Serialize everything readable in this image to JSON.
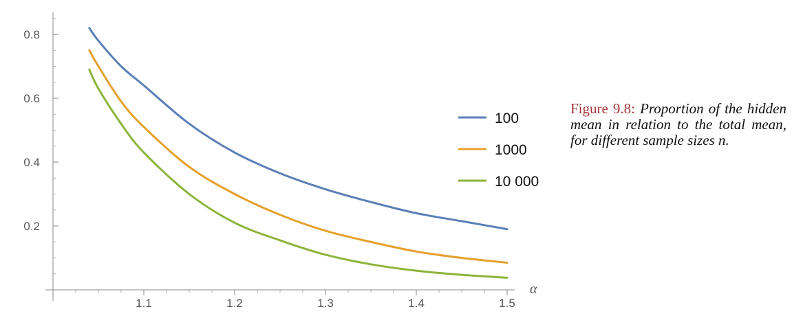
{
  "chart_data": {
    "type": "line",
    "xlabel": "α",
    "ylabel": "",
    "xlim": [
      1.0,
      1.5
    ],
    "ylim": [
      0.0,
      0.85
    ],
    "x_ticks": [
      1.1,
      1.2,
      1.3,
      1.4,
      1.5
    ],
    "y_ticks": [
      0.2,
      0.4,
      0.6,
      0.8
    ],
    "x_tick_labels": [
      "1.1",
      "1.2",
      "1.3",
      "1.4",
      "1.5"
    ],
    "y_tick_labels": [
      "0.2",
      "0.4",
      "0.6",
      "0.8"
    ],
    "x": [
      1.04,
      1.05,
      1.075,
      1.1,
      1.15,
      1.2,
      1.25,
      1.3,
      1.35,
      1.4,
      1.45,
      1.5
    ],
    "series": [
      {
        "name": "100",
        "color": "#5b7fb8",
        "values": [
          0.82,
          0.78,
          0.7,
          0.64,
          0.52,
          0.43,
          0.365,
          0.315,
          0.275,
          0.24,
          0.215,
          0.19
        ]
      },
      {
        "name": "1000",
        "color": "#e5a02c",
        "values": [
          0.75,
          0.7,
          0.59,
          0.51,
          0.385,
          0.3,
          0.235,
          0.185,
          0.15,
          0.12,
          0.1,
          0.085
        ]
      },
      {
        "name": "10 000",
        "color": "#8cb43a",
        "values": [
          0.69,
          0.63,
          0.52,
          0.43,
          0.3,
          0.21,
          0.155,
          0.11,
          0.08,
          0.06,
          0.047,
          0.038
        ]
      }
    ],
    "legend": "right",
    "grid": false
  },
  "caption": {
    "label": "Figure 9.8:",
    "text": "Proportion of the hidden mean in relation to the total mean, for different sample sizes n."
  }
}
